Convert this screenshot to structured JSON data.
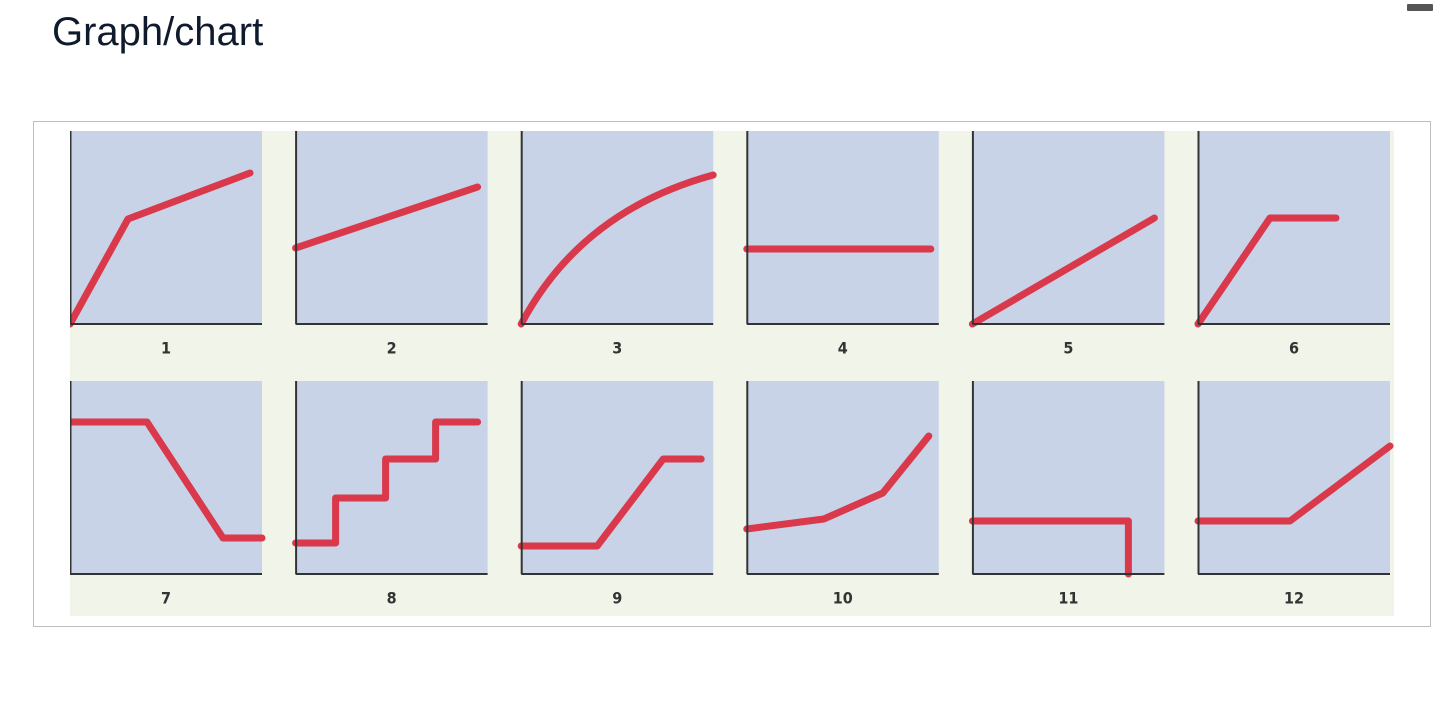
{
  "header": {
    "title": "Graph/chart"
  },
  "panels": [
    {
      "label": "1"
    },
    {
      "label": "2"
    },
    {
      "label": "3"
    },
    {
      "label": "4"
    },
    {
      "label": "5"
    },
    {
      "label": "6"
    },
    {
      "label": "7"
    },
    {
      "label": "8"
    },
    {
      "label": "9"
    },
    {
      "label": "10"
    },
    {
      "label": "11"
    },
    {
      "label": "12"
    }
  ]
}
